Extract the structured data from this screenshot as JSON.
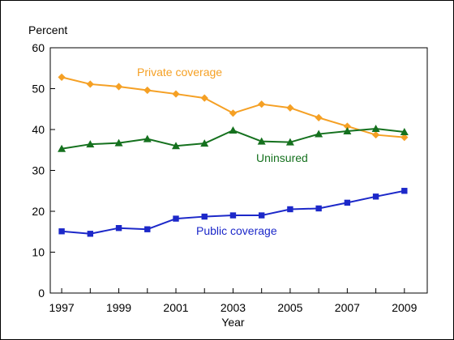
{
  "chart_data": {
    "type": "line",
    "title": "",
    "ylabel": "Percent",
    "xlabel": "Year",
    "ylim": [
      0,
      60
    ],
    "yticks": [
      0,
      10,
      20,
      30,
      40,
      50,
      60
    ],
    "xlim": [
      1996.6,
      2009.8
    ],
    "xticks": [
      1997,
      1999,
      2001,
      2003,
      2005,
      2007,
      2009
    ],
    "x": [
      1997,
      1998,
      1999,
      2000,
      2001,
      2002,
      2003,
      2004,
      2005,
      2006,
      2007,
      2008,
      2009
    ],
    "grid": false,
    "legend": "none (series labelled directly on the plot)",
    "series": [
      {
        "name": "Private coverage",
        "color": "#f5a024",
        "marker": "diamond",
        "values": [
          52.8,
          51.1,
          50.5,
          49.6,
          48.7,
          47.7,
          44.0,
          46.2,
          45.3,
          42.9,
          40.8,
          38.7,
          38.1
        ]
      },
      {
        "name": "Uninsured",
        "color": "#15711e",
        "marker": "triangle",
        "values": [
          35.3,
          36.4,
          36.7,
          37.7,
          36.0,
          36.6,
          39.8,
          37.1,
          36.9,
          38.9,
          39.6,
          40.2,
          39.4
        ]
      },
      {
        "name": "Public coverage",
        "color": "#1c28c9",
        "marker": "square",
        "values": [
          15.1,
          14.5,
          15.9,
          15.6,
          18.2,
          18.7,
          19.0,
          19.0,
          20.5,
          20.7,
          22.1,
          23.6,
          25.0
        ]
      }
    ],
    "axis_color": "#000000",
    "text_color": "#000000"
  }
}
